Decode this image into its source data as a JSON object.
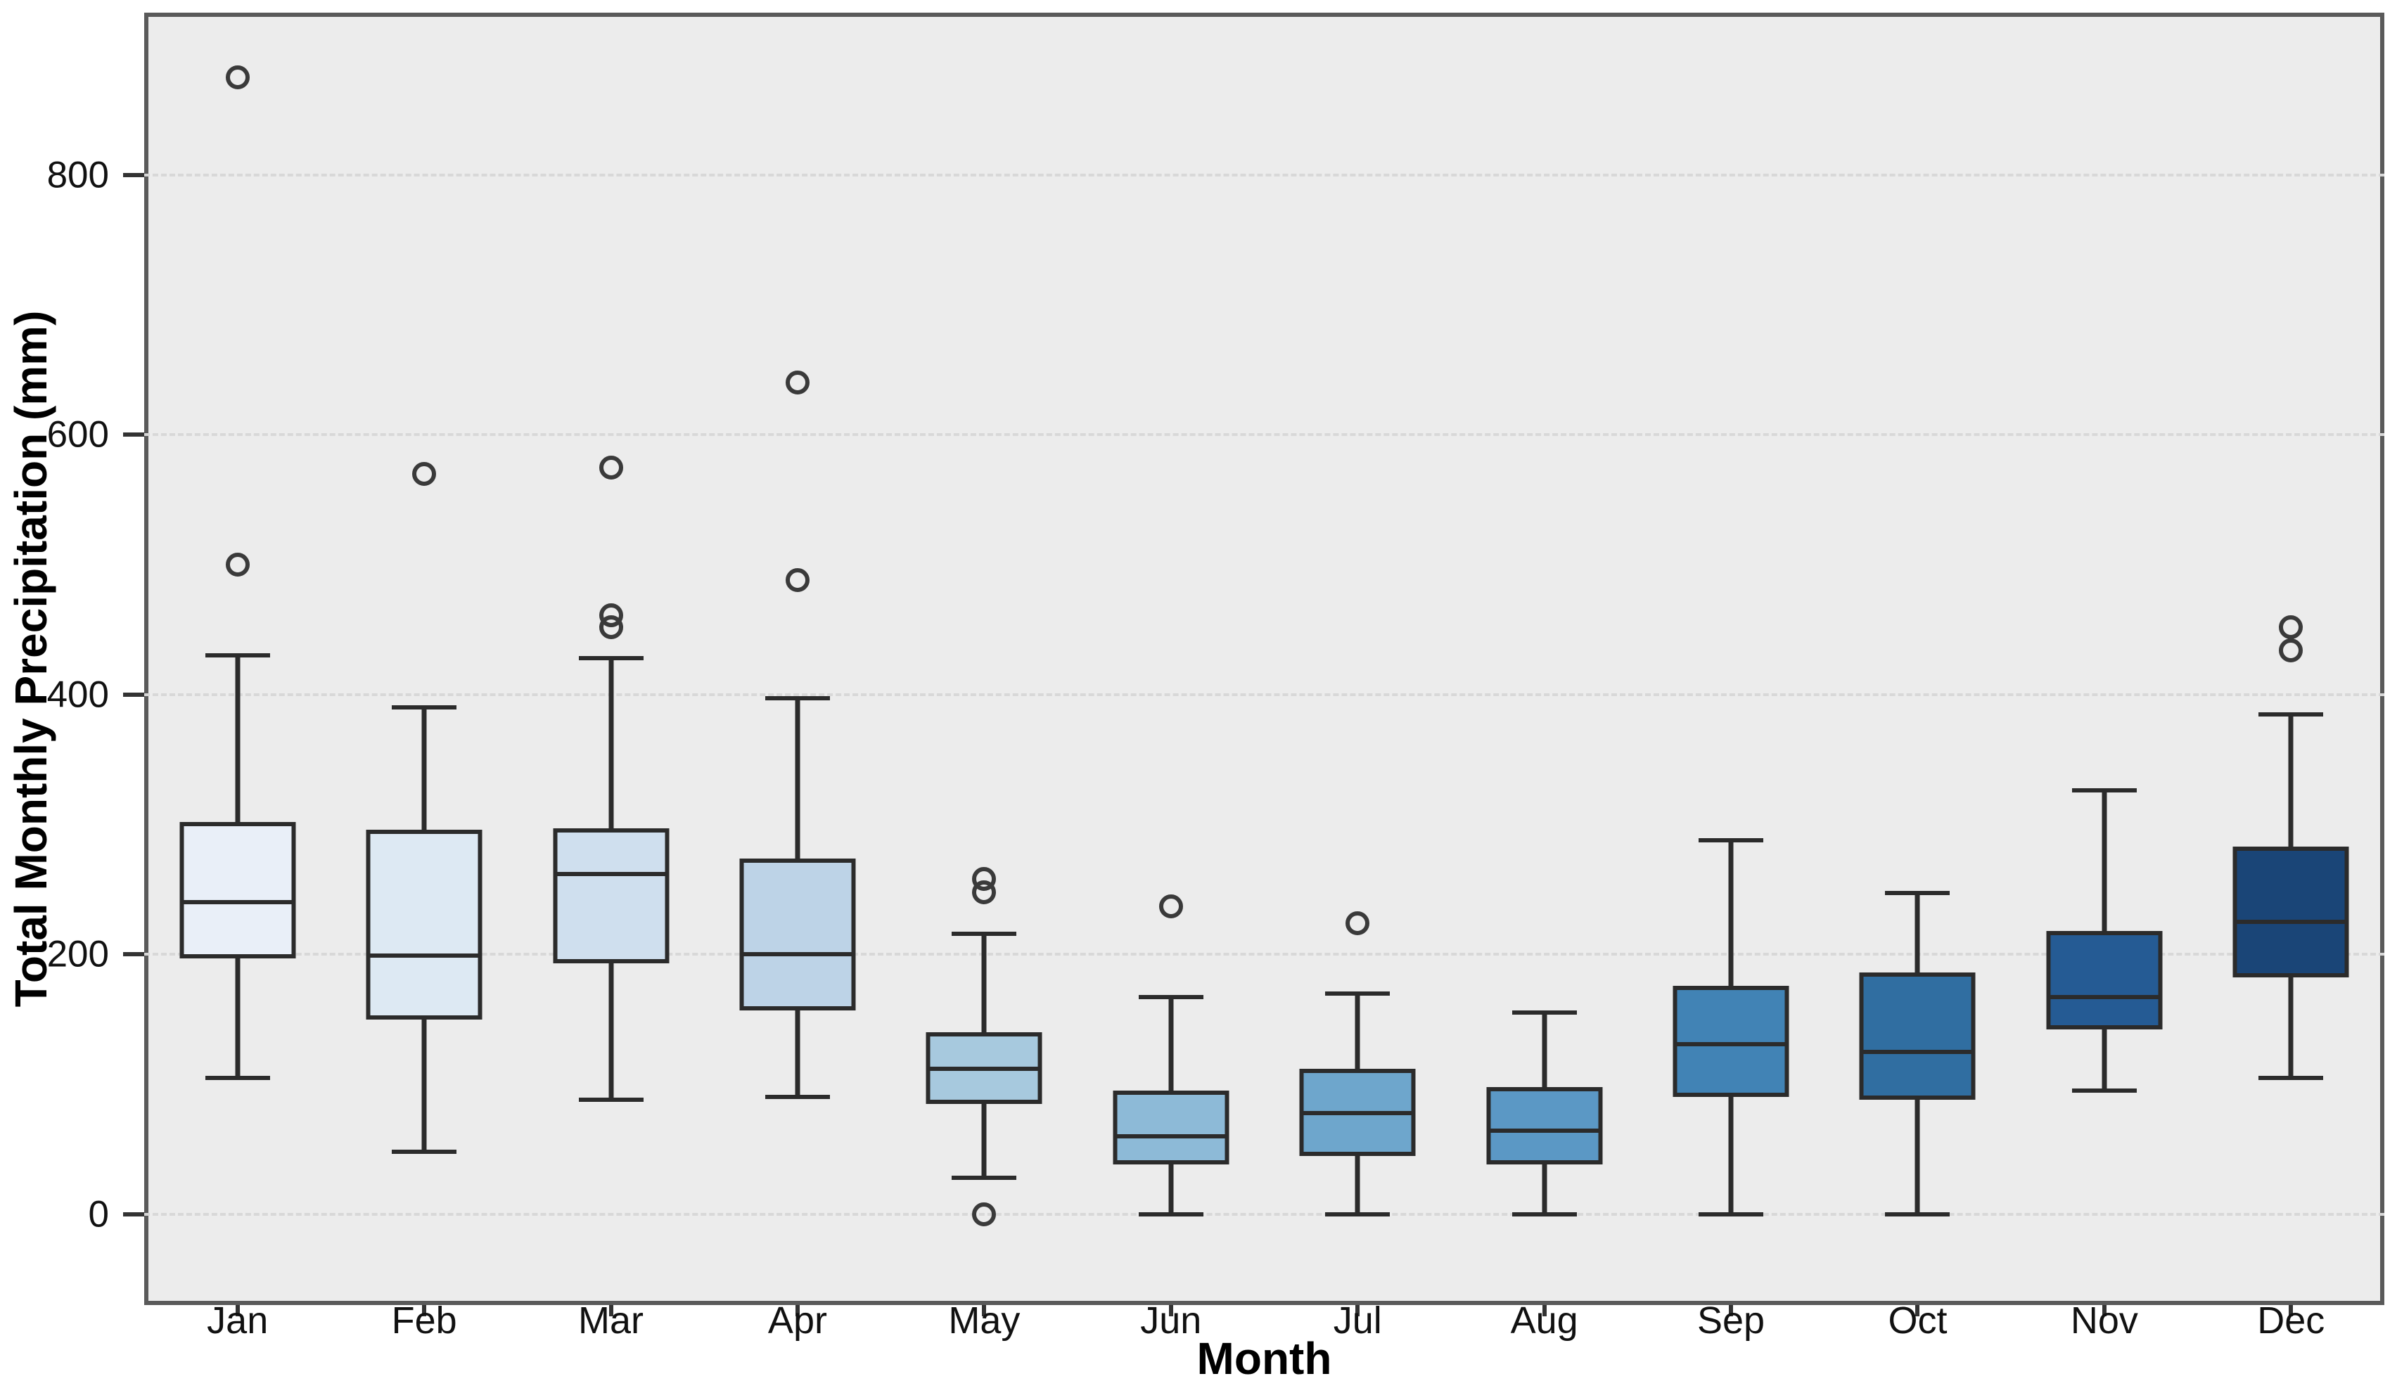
{
  "chart_data": {
    "type": "box",
    "title": "",
    "xlabel": "Month",
    "ylabel": "Total Monthly Precipitation (mm)",
    "categories": [
      "Jan",
      "Feb",
      "Mar",
      "Apr",
      "May",
      "Jun",
      "Jul",
      "Aug",
      "Sep",
      "Oct",
      "Nov",
      "Dec"
    ],
    "yticks": [
      0,
      200,
      400,
      600,
      800
    ],
    "ylim": [
      -70,
      925
    ],
    "grid": true,
    "grid_style": "dashed",
    "legend": false,
    "colors": {
      "figure_bg": "#ffffff",
      "plot_bg": "#ececec",
      "grid_color": "#d8d8d8",
      "spine_color": "#5a5a5a",
      "box_edge_color": "#2b2b2b",
      "outlier_edge_color": "#3a3a3a",
      "text_color": "#111111"
    },
    "boxes": [
      {
        "month": "Jan",
        "whisker_low": 105,
        "q1": 197,
        "median": 240,
        "q3": 302,
        "whisker_high": 430,
        "outliers": [
          500,
          875
        ],
        "fill": "#e9eff8"
      },
      {
        "month": "Feb",
        "whisker_low": 48,
        "q1": 150,
        "median": 199,
        "q3": 296,
        "whisker_high": 390,
        "outliers": [
          570
        ],
        "fill": "#dde9f3"
      },
      {
        "month": "Mar",
        "whisker_low": 88,
        "q1": 193,
        "median": 262,
        "q3": 297,
        "whisker_high": 428,
        "outliers": [
          452,
          461,
          575
        ],
        "fill": "#cfdfee"
      },
      {
        "month": "Apr",
        "whisker_low": 90,
        "q1": 157,
        "median": 200,
        "q3": 274,
        "whisker_high": 397,
        "outliers": [
          488,
          640
        ],
        "fill": "#bdd3e7"
      },
      {
        "month": "May",
        "whisker_low": 28,
        "q1": 85,
        "median": 112,
        "q3": 140,
        "whisker_high": 216,
        "outliers": [
          0,
          248,
          258
        ],
        "fill": "#a7c9de"
      },
      {
        "month": "Jun",
        "whisker_low": 0,
        "q1": 38,
        "median": 60,
        "q3": 95,
        "whisker_high": 167,
        "outliers": [
          237
        ],
        "fill": "#8dbad7"
      },
      {
        "month": "Jul",
        "whisker_low": 0,
        "q1": 45,
        "median": 78,
        "q3": 112,
        "whisker_high": 170,
        "outliers": [
          224
        ],
        "fill": "#6ea6cc"
      },
      {
        "month": "Aug",
        "whisker_low": 0,
        "q1": 38,
        "median": 64,
        "q3": 98,
        "whisker_high": 155,
        "outliers": [],
        "fill": "#5b98c5"
      },
      {
        "month": "Sep",
        "whisker_low": 0,
        "q1": 90,
        "median": 131,
        "q3": 176,
        "whisker_high": 288,
        "outliers": [],
        "fill": "#4183b5"
      },
      {
        "month": "Oct",
        "whisker_low": 0,
        "q1": 88,
        "median": 125,
        "q3": 186,
        "whisker_high": 247,
        "outliers": [],
        "fill": "#306ea1"
      },
      {
        "month": "Nov",
        "whisker_low": 95,
        "q1": 142,
        "median": 167,
        "q3": 218,
        "whisker_high": 326,
        "outliers": [],
        "fill": "#255b94"
      },
      {
        "month": "Dec",
        "whisker_low": 105,
        "q1": 182,
        "median": 225,
        "q3": 283,
        "whisker_high": 385,
        "outliers": [
          434,
          452
        ],
        "fill": "#1a4577"
      }
    ]
  }
}
